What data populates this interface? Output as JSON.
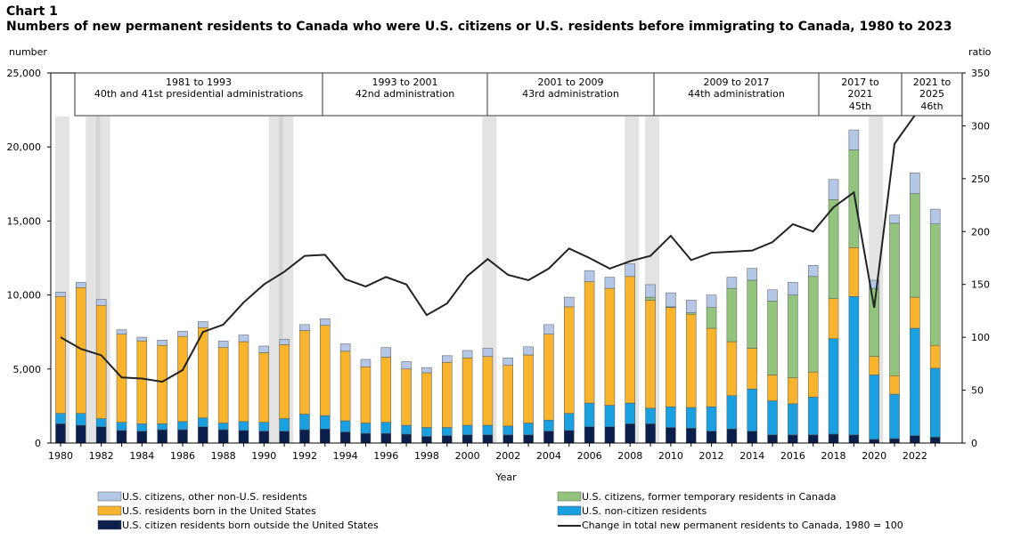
{
  "chart_data": {
    "type": "bar",
    "stacked": true,
    "title": "Chart 1",
    "subtitle": "Numbers of new permanent residents to Canada who were U.S. citizens or U.S. residents before immigrating to Canada, 1980 to 2023",
    "xlabel": "Year",
    "ylabel_left": "number",
    "ylabel_right": "ratio",
    "ylim_left": [
      0,
      25000
    ],
    "ylim_right": [
      0,
      350
    ],
    "yticks_left": [
      "0",
      "5,000",
      "10,000",
      "15,000",
      "20,000",
      "25,000"
    ],
    "yticks_right": [
      "0",
      "50",
      "100",
      "150",
      "200",
      "250",
      "300",
      "350"
    ],
    "categories": [
      1980,
      1981,
      1982,
      1983,
      1984,
      1985,
      1986,
      1987,
      1988,
      1989,
      1990,
      1991,
      1992,
      1993,
      1994,
      1995,
      1996,
      1997,
      1998,
      1999,
      2000,
      2001,
      2002,
      2003,
      2004,
      2005,
      2006,
      2007,
      2008,
      2009,
      2010,
      2011,
      2012,
      2013,
      2014,
      2015,
      2016,
      2017,
      2018,
      2019,
      2020,
      2021,
      2022,
      2023
    ],
    "xtick_labels": [
      "1980",
      "1982",
      "1984",
      "1986",
      "1988",
      "1990",
      "1992",
      "1994",
      "1996",
      "1998",
      "2000",
      "2002",
      "2004",
      "2006",
      "2008",
      "2010",
      "2012",
      "2014",
      "2016",
      "2018",
      "2020",
      "2022"
    ],
    "series": [
      {
        "name": "U.S. citizen residents born outside the United States",
        "color": "#0b1f4d",
        "values": [
          1300,
          1200,
          1100,
          850,
          800,
          900,
          900,
          1100,
          900,
          850,
          800,
          800,
          900,
          950,
          750,
          650,
          650,
          600,
          450,
          500,
          550,
          550,
          550,
          550,
          800,
          850,
          1100,
          1100,
          1300,
          1300,
          1050,
          1000,
          800,
          950,
          800,
          550,
          550,
          550,
          600,
          550,
          250,
          300,
          500,
          400
        ]
      },
      {
        "name": "U.S. non-citizen residents",
        "color": "#1aa0e0",
        "values": [
          700,
          800,
          550,
          550,
          500,
          400,
          550,
          600,
          450,
          600,
          600,
          850,
          1050,
          900,
          750,
          700,
          750,
          600,
          600,
          550,
          650,
          650,
          600,
          800,
          750,
          1150,
          1600,
          1450,
          1400,
          1050,
          1400,
          1400,
          1650,
          2250,
          2850,
          2300,
          2100,
          2550,
          6450,
          9350,
          4350,
          3000,
          7250,
          4650
        ]
      },
      {
        "name": "U.S. residents born in the United States",
        "color": "#f7b42c",
        "values": [
          7900,
          8500,
          7650,
          5950,
          5600,
          5300,
          5750,
          6100,
          5100,
          5400,
          4700,
          5000,
          5650,
          6100,
          4700,
          3800,
          4400,
          3800,
          3700,
          4400,
          4550,
          4650,
          4100,
          4600,
          5800,
          7200,
          8200,
          7900,
          8550,
          7300,
          6700,
          6300,
          5300,
          3650,
          2750,
          1750,
          1750,
          1700,
          2700,
          3300,
          1250,
          1250,
          2100,
          1550
        ]
      },
      {
        "name": "U.S. citizens, former temporary residents in Canada",
        "color": "#93c47d",
        "values": [
          0,
          0,
          0,
          0,
          0,
          0,
          0,
          0,
          0,
          0,
          0,
          0,
          0,
          0,
          0,
          0,
          0,
          0,
          0,
          0,
          0,
          0,
          0,
          0,
          0,
          0,
          0,
          0,
          0,
          200,
          50,
          100,
          1400,
          3600,
          4600,
          5000,
          5600,
          6450,
          6700,
          6600,
          4600,
          10300,
          7000,
          8200
        ]
      },
      {
        "name": "U.S. citizens, other non-U.S. residents",
        "color": "#b4c7e7",
        "values": [
          300,
          350,
          400,
          300,
          250,
          350,
          350,
          400,
          450,
          450,
          450,
          350,
          400,
          450,
          500,
          500,
          650,
          500,
          350,
          450,
          500,
          550,
          500,
          550,
          650,
          650,
          750,
          750,
          850,
          850,
          950,
          850,
          850,
          750,
          800,
          750,
          850,
          750,
          1350,
          1350,
          550,
          550,
          1400,
          1000
        ]
      }
    ],
    "line": {
      "name": "Change in total new permanent residents to Canada, 1980 = 100",
      "color": "#222222",
      "values": [
        100,
        89,
        83,
        62,
        61,
        58,
        69,
        105,
        112,
        133,
        150,
        162,
        177,
        178,
        155,
        148,
        157,
        150,
        121,
        132,
        158,
        174,
        159,
        154,
        165,
        184,
        175,
        165,
        172,
        177,
        196,
        173,
        180,
        181,
        182,
        190,
        207,
        200,
        223,
        237,
        128,
        283,
        310,
        340
      ]
    },
    "recessions": [
      1980,
      1981.5,
      1982,
      1990.5,
      1991,
      2001,
      2008,
      2009,
      2020
    ],
    "administrations": [
      {
        "period": "1981 to 1993",
        "label": "40th and 41st presidential administrations"
      },
      {
        "period": "1993 to 2001",
        "label": "42nd administration"
      },
      {
        "period": "2001 to 2009",
        "label": "43rd administration"
      },
      {
        "period": "2009 to 2017",
        "label": "44th administration"
      },
      {
        "period": "2017 to 2021",
        "label": "45th"
      },
      {
        "period": "2021 to 2025",
        "label": "46th"
      }
    ],
    "legend_position": "bottom"
  }
}
